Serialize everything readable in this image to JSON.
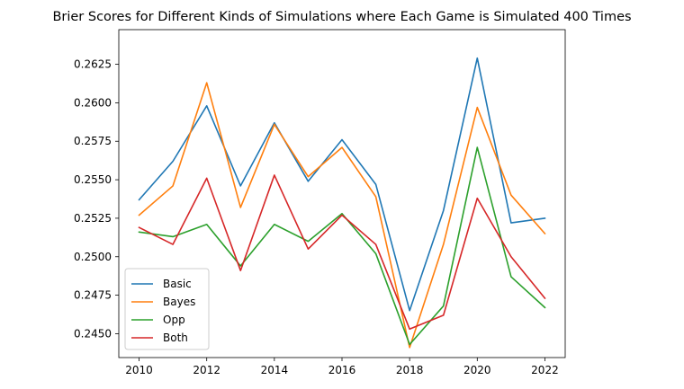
{
  "chart_data": {
    "type": "line",
    "title": "Brier Scores for Different Kinds of Simulations where Each Game is Simulated 400 Times",
    "xlabel": "",
    "ylabel": "",
    "x": [
      2010,
      2011,
      2012,
      2013,
      2014,
      2015,
      2016,
      2017,
      2018,
      2019,
      2020,
      2021,
      2022
    ],
    "xlim": [
      2009.4,
      2022.6
    ],
    "ylim": [
      0.24345,
      0.26475
    ],
    "xticks": [
      2010,
      2012,
      2014,
      2016,
      2018,
      2020,
      2022
    ],
    "xtick_labels": [
      "2010",
      "2012",
      "2014",
      "2016",
      "2018",
      "2020",
      "2022"
    ],
    "yticks": [
      0.245,
      0.2475,
      0.25,
      0.2525,
      0.255,
      0.2575,
      0.26,
      0.2625
    ],
    "ytick_labels": [
      "0.2450",
      "0.2475",
      "0.2500",
      "0.2525",
      "0.2550",
      "0.2575",
      "0.2600",
      "0.2625"
    ],
    "grid": false,
    "legend_position": "lower-left",
    "series": [
      {
        "name": "Basic",
        "color": "#1f77b4",
        "values": [
          0.2537,
          0.2562,
          0.2598,
          0.2546,
          0.2587,
          0.2549,
          0.2576,
          0.2547,
          0.2465,
          0.253,
          0.2629,
          0.2522,
          0.2525
        ]
      },
      {
        "name": "Bayes",
        "color": "#ff7f0e",
        "values": [
          0.2527,
          0.2546,
          0.2613,
          0.2532,
          0.2586,
          0.2552,
          0.2571,
          0.2539,
          0.2441,
          0.2508,
          0.2597,
          0.254,
          0.2515
        ]
      },
      {
        "name": "Opp",
        "color": "#2ca02c",
        "values": [
          0.2516,
          0.2513,
          0.2521,
          0.2494,
          0.2521,
          0.251,
          0.2528,
          0.2502,
          0.2443,
          0.2468,
          0.2571,
          0.2487,
          0.2467
        ]
      },
      {
        "name": "Both",
        "color": "#d62728",
        "values": [
          0.2519,
          0.2508,
          0.2551,
          0.2491,
          0.2553,
          0.2505,
          0.2527,
          0.2508,
          0.2453,
          0.2462,
          0.2538,
          0.25,
          0.2473
        ]
      }
    ]
  }
}
